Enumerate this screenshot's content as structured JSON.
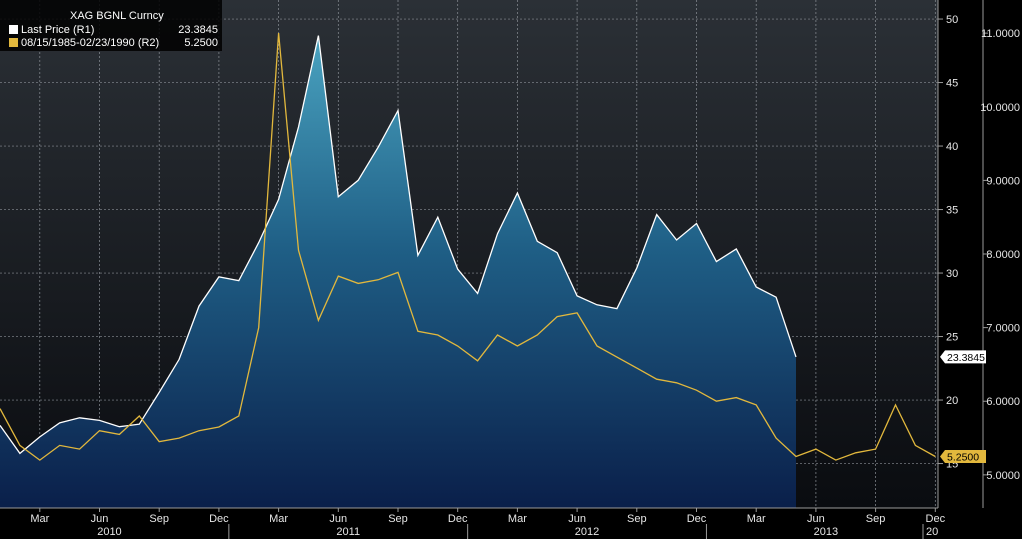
{
  "legend": {
    "title": "XAG BGNL Curncy",
    "entries": [
      {
        "label": "Last Price  (R1)",
        "value": "23.3845",
        "color": "#ffffff"
      },
      {
        "label": "08/15/1985-02/23/1990  (R2)",
        "value": "5.2500",
        "color": "#e2b83d"
      }
    ]
  },
  "chart_data": {
    "type": "line",
    "title": "XAG BGNL Curncy",
    "legend_position": "top-left",
    "grid": true,
    "x_axis": {
      "month_ticks": [
        "Mar",
        "Jun",
        "Sep",
        "Dec",
        "Mar",
        "Jun",
        "Sep",
        "Dec",
        "Mar",
        "Jun",
        "Sep",
        "Dec",
        "Mar",
        "Jun",
        "Sep",
        "Dec"
      ],
      "year_labels": [
        "2010",
        "2011",
        "2012",
        "2013"
      ],
      "trailing_label": "20",
      "range": [
        "2010-01",
        "2013-12"
      ]
    },
    "y_axis_r1": {
      "ticks": [
        "15",
        "20",
        "25",
        "30",
        "35",
        "40",
        "45",
        "50"
      ],
      "range": [
        11.5,
        51.5
      ]
    },
    "y_axis_r2": {
      "ticks": [
        "5.0000",
        "6.0000",
        "7.0000",
        "8.0000",
        "9.0000",
        "10.0000",
        "11.0000"
      ],
      "range": [
        4.55,
        11.45
      ]
    },
    "series": [
      {
        "name": "Last Price (R1)",
        "axis": "R1",
        "style": "area",
        "color": "#ffffff",
        "last_value_label": "23.3845",
        "points": [
          [
            "2010-01",
            18.0
          ],
          [
            "2010-02",
            15.8
          ],
          [
            "2010-03",
            17.1
          ],
          [
            "2010-04",
            18.2
          ],
          [
            "2010-05",
            18.6
          ],
          [
            "2010-06",
            18.4
          ],
          [
            "2010-07",
            17.9
          ],
          [
            "2010-08",
            18.1
          ],
          [
            "2010-09",
            20.6
          ],
          [
            "2010-10",
            23.2
          ],
          [
            "2010-11",
            27.4
          ],
          [
            "2010-12",
            29.7
          ],
          [
            "2011-01",
            29.4
          ],
          [
            "2011-02",
            32.4
          ],
          [
            "2011-03",
            35.8
          ],
          [
            "2011-04",
            41.5
          ],
          [
            "2011-05",
            48.7
          ],
          [
            "2011-06",
            36.0
          ],
          [
            "2011-07",
            37.3
          ],
          [
            "2011-08",
            39.9
          ],
          [
            "2011-09",
            42.8
          ],
          [
            "2011-10",
            31.4
          ],
          [
            "2011-11",
            34.4
          ],
          [
            "2011-12",
            30.3
          ],
          [
            "2012-01",
            28.4
          ],
          [
            "2012-02",
            33.1
          ],
          [
            "2012-03",
            36.3
          ],
          [
            "2012-04",
            32.5
          ],
          [
            "2012-05",
            31.6
          ],
          [
            "2012-06",
            28.2
          ],
          [
            "2012-07",
            27.5
          ],
          [
            "2012-08",
            27.2
          ],
          [
            "2012-09",
            30.4
          ],
          [
            "2012-10",
            34.6
          ],
          [
            "2012-11",
            32.6
          ],
          [
            "2012-12",
            33.9
          ],
          [
            "2013-01",
            30.9
          ],
          [
            "2013-02",
            31.9
          ],
          [
            "2013-03",
            28.9
          ],
          [
            "2013-04",
            28.1
          ],
          [
            "2013-05",
            23.4
          ]
        ]
      },
      {
        "name": "08/15/1985-02/23/1990 (R2)",
        "axis": "R2",
        "style": "line",
        "color": "#e2b83d",
        "last_value_label": "5.2500",
        "points": [
          [
            "2010-01",
            5.9
          ],
          [
            "2010-02",
            5.4
          ],
          [
            "2010-03",
            5.2
          ],
          [
            "2010-04",
            5.4
          ],
          [
            "2010-05",
            5.35
          ],
          [
            "2010-06",
            5.6
          ],
          [
            "2010-07",
            5.55
          ],
          [
            "2010-08",
            5.8
          ],
          [
            "2010-09",
            5.45
          ],
          [
            "2010-10",
            5.5
          ],
          [
            "2010-11",
            5.6
          ],
          [
            "2010-12",
            5.65
          ],
          [
            "2011-01",
            5.8
          ],
          [
            "2011-02",
            7.0
          ],
          [
            "2011-03",
            11.0
          ],
          [
            "2011-04",
            8.05
          ],
          [
            "2011-05",
            7.1
          ],
          [
            "2011-06",
            7.7
          ],
          [
            "2011-07",
            7.6
          ],
          [
            "2011-08",
            7.65
          ],
          [
            "2011-09",
            7.75
          ],
          [
            "2011-10",
            6.95
          ],
          [
            "2011-11",
            6.9
          ],
          [
            "2011-12",
            6.75
          ],
          [
            "2012-01",
            6.55
          ],
          [
            "2012-02",
            6.9
          ],
          [
            "2012-03",
            6.75
          ],
          [
            "2012-04",
            6.9
          ],
          [
            "2012-05",
            7.15
          ],
          [
            "2012-06",
            7.2
          ],
          [
            "2012-07",
            6.75
          ],
          [
            "2012-08",
            6.6
          ],
          [
            "2012-09",
            6.45
          ],
          [
            "2012-10",
            6.3
          ],
          [
            "2012-11",
            6.25
          ],
          [
            "2012-12",
            6.15
          ],
          [
            "2013-01",
            6.0
          ],
          [
            "2013-02",
            6.05
          ],
          [
            "2013-03",
            5.95
          ],
          [
            "2013-04",
            5.5
          ],
          [
            "2013-05",
            5.25
          ],
          [
            "2013-06",
            5.35
          ],
          [
            "2013-07",
            5.2
          ],
          [
            "2013-08",
            5.3
          ],
          [
            "2013-09",
            5.35
          ],
          [
            "2013-10",
            5.95
          ],
          [
            "2013-11",
            5.4
          ],
          [
            "2013-12",
            5.25
          ]
        ]
      }
    ]
  }
}
